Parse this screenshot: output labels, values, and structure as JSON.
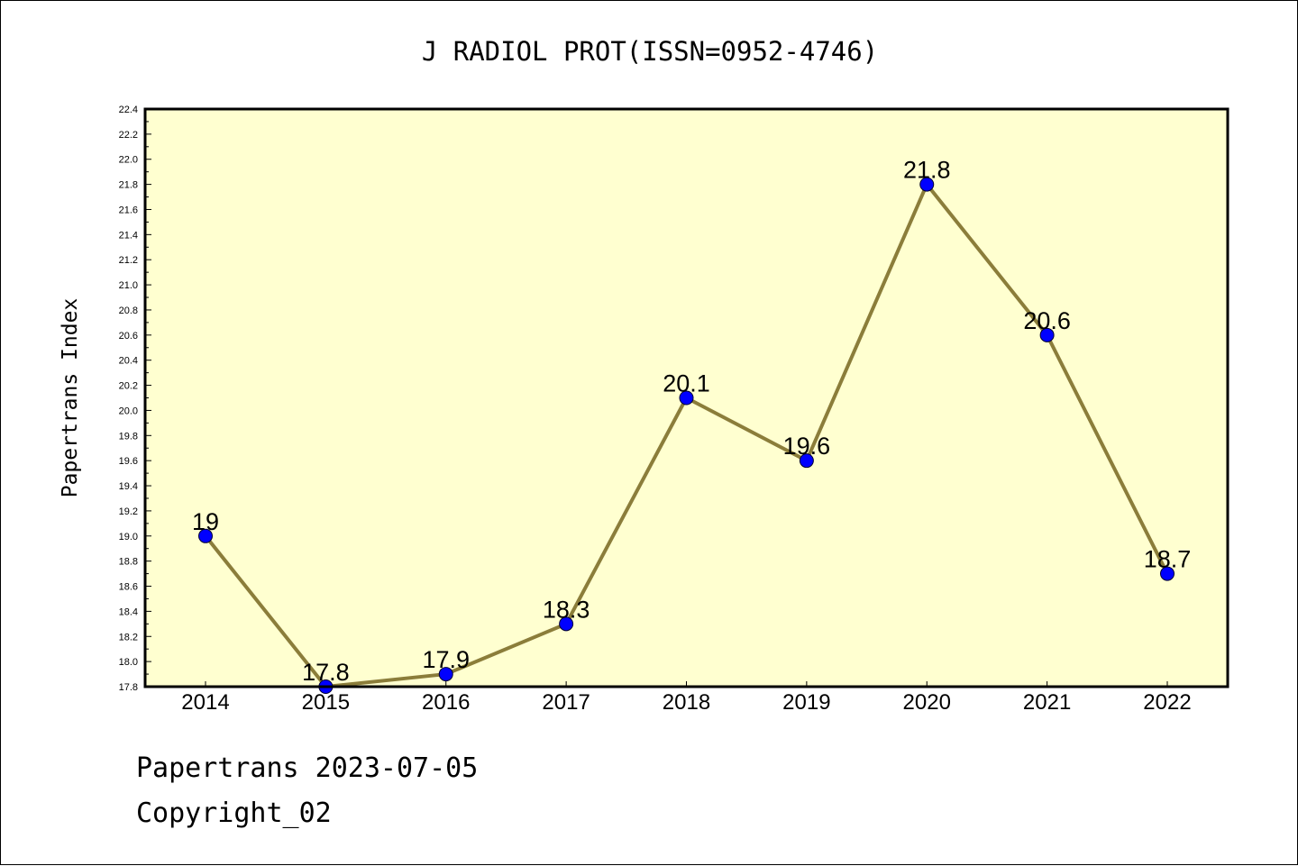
{
  "chart_data": {
    "type": "line",
    "title": "J RADIOL PROT(ISSN=0952-4746)",
    "xlabel": "",
    "ylabel": "Papertrans Index",
    "categories": [
      "2014",
      "2015",
      "2016",
      "2017",
      "2018",
      "2019",
      "2020",
      "2021",
      "2022"
    ],
    "series": [
      {
        "values": [
          19,
          17.8,
          17.9,
          18.3,
          20.1,
          19.6,
          21.8,
          20.6,
          18.7
        ],
        "data_labels": [
          "19",
          "17.8",
          "17.9",
          "18.3",
          "20.1",
          "19.6",
          "21.8",
          "20.6",
          "18.7"
        ],
        "line_color": "#8b7d3a",
        "marker_color": "#0000ff"
      }
    ],
    "ylim": [
      17.8,
      22.4
    ],
    "yticks": [
      "17.8",
      "18.0",
      "18.2",
      "18.4",
      "18.6",
      "18.8",
      "19.0",
      "19.2",
      "19.4",
      "19.6",
      "19.8",
      "20.0",
      "20.2",
      "20.4",
      "20.6",
      "20.8",
      "21.0",
      "21.2",
      "21.4",
      "21.6",
      "21.8",
      "22.0",
      "22.2",
      "22.4"
    ],
    "grid": false,
    "plot_background": "#ffffd0"
  },
  "footer": {
    "date_line": "Papertrans 2023-07-05",
    "copyright": "Copyright_02"
  }
}
